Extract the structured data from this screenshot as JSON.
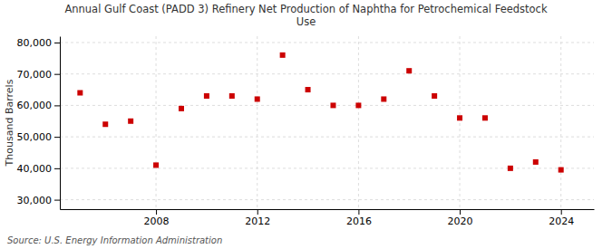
{
  "chart_data": {
    "type": "scatter",
    "title": "Annual Gulf Coast (PADD 3) Refinery Net Production of Naphtha for Petrochemical Feedstock\nUse",
    "y_label": "Thousand Barrels",
    "annotation": "Source: U.S. Energy Information Administration",
    "x": [
      2005,
      2006,
      2007,
      2008,
      2009,
      2010,
      2011,
      2012,
      2013,
      2014,
      2015,
      2016,
      2017,
      2018,
      2019,
      2020,
      2021,
      2022,
      2023,
      2024
    ],
    "values": [
      64000,
      54000,
      55000,
      41000,
      59000,
      63000,
      63000,
      62000,
      76000,
      65000,
      60000,
      60000,
      62000,
      71000,
      63000,
      56000,
      56000,
      40000,
      42000,
      39500
    ],
    "color": "#cc0000",
    "marker": "square",
    "xlim": [
      2004.2,
      2025.3
    ],
    "xticks": [
      2008,
      2012,
      2016,
      2020,
      2024
    ],
    "ylim": [
      27000,
      82000
    ],
    "yticks": [
      {
        "value": 30000,
        "label": "30,000"
      },
      {
        "value": 40000,
        "label": "40,000"
      },
      {
        "value": 50000,
        "label": "50,000"
      },
      {
        "value": 60000,
        "label": "60,000"
      },
      {
        "value": 70000,
        "label": "70,000"
      },
      {
        "value": 80000,
        "label": "80,000"
      }
    ],
    "grid": true
  }
}
